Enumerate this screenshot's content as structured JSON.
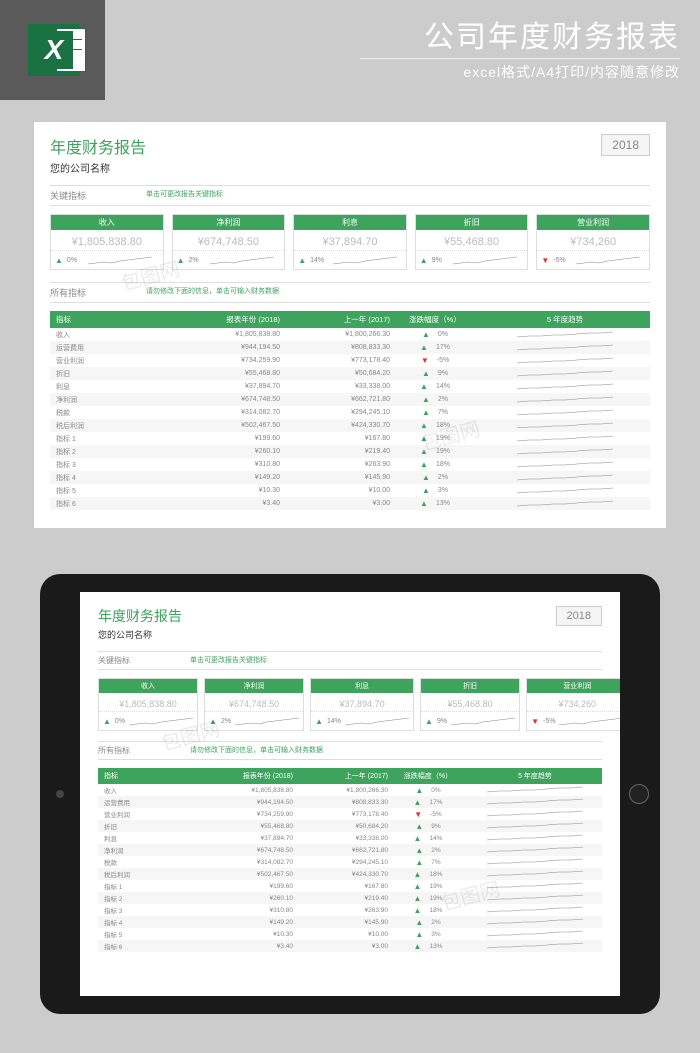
{
  "header": {
    "excel_letter": "X",
    "main_title": "公司年度财务报表",
    "sub_title": "excel格式/A4打印/内容随意修改"
  },
  "report": {
    "title": "年度财务报告",
    "company": "您的公司名称",
    "year": "2018",
    "section_kpi": "关键指标",
    "kpi_hint": "单击可更改报告关键指标",
    "section_all": "所有指标",
    "all_hint": "请勿修改下面的信息，单击可输入财务数据"
  },
  "kpi": [
    {
      "label": "收入",
      "value": "¥1,805,838.80",
      "arrow": "up",
      "pct": "0%"
    },
    {
      "label": "净利润",
      "value": "¥674,748.50",
      "arrow": "up",
      "pct": "2%"
    },
    {
      "label": "利息",
      "value": "¥37,894.70",
      "arrow": "up",
      "pct": "14%"
    },
    {
      "label": "折旧",
      "value": "¥55,468.80",
      "arrow": "up",
      "pct": "9%"
    },
    {
      "label": "营业利润",
      "value": "¥734,260",
      "arrow": "down",
      "pct": "-5%"
    }
  ],
  "columns": {
    "name": "指标",
    "y1": "报表年份 (2018)",
    "y2": "上一年 (2017)",
    "ch": "涨跌幅度（%）",
    "tr": "5 年度趋势"
  },
  "rows": [
    {
      "name": "收入",
      "y1": "¥1,805,838.80",
      "y2": "¥1,800,266.30",
      "arrow": "up",
      "pct": "0%"
    },
    {
      "name": "运营费用",
      "y1": "¥944,194.50",
      "y2": "¥808,833.30",
      "arrow": "up",
      "pct": "17%"
    },
    {
      "name": "营业利润",
      "y1": "¥734,259.90",
      "y2": "¥773,178.40",
      "arrow": "down",
      "pct": "-5%"
    },
    {
      "name": "折旧",
      "y1": "¥55,468.80",
      "y2": "¥50,684.20",
      "arrow": "up",
      "pct": "9%"
    },
    {
      "name": "利息",
      "y1": "¥37,894.70",
      "y2": "¥33,338.00",
      "arrow": "up",
      "pct": "14%"
    },
    {
      "name": "净利润",
      "y1": "¥674,748.50",
      "y2": "¥662,721.80",
      "arrow": "up",
      "pct": "2%"
    },
    {
      "name": "税款",
      "y1": "¥314,082.70",
      "y2": "¥294,245.10",
      "arrow": "up",
      "pct": "7%"
    },
    {
      "name": "税后利润",
      "y1": "¥502,467.50",
      "y2": "¥424,330.70",
      "arrow": "up",
      "pct": "18%"
    },
    {
      "name": "指标 1",
      "y1": "¥199.60",
      "y2": "¥167.80",
      "arrow": "up",
      "pct": "19%"
    },
    {
      "name": "指标 2",
      "y1": "¥260.10",
      "y2": "¥219.40",
      "arrow": "up",
      "pct": "19%"
    },
    {
      "name": "指标 3",
      "y1": "¥310.80",
      "y2": "¥263.90",
      "arrow": "up",
      "pct": "18%"
    },
    {
      "name": "指标 4",
      "y1": "¥149.20",
      "y2": "¥145.90",
      "arrow": "up",
      "pct": "2%"
    },
    {
      "name": "指标 5",
      "y1": "¥10.30",
      "y2": "¥10.00",
      "arrow": "up",
      "pct": "3%"
    },
    {
      "name": "指标 6",
      "y1": "¥3.40",
      "y2": "¥3.00",
      "arrow": "up",
      "pct": "13%"
    }
  ],
  "colors": {
    "accent": "#3da35d",
    "up": "#3da35d",
    "down": "#d33",
    "spark": "#888888"
  },
  "sparkline": "0,10 8,9 16,8 24,9 32,7 40,6 48,5 56,4 64,3",
  "trendline": "0,7 12,6 24,6 36,5 48,5 60,4 72,3 84,3 96,2"
}
